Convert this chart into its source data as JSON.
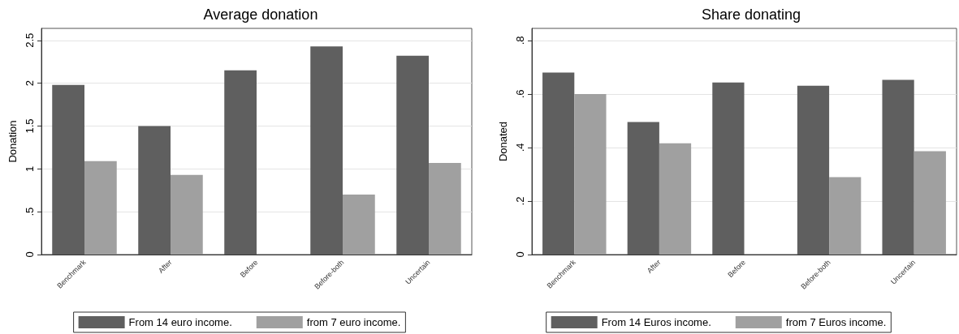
{
  "chart_data": [
    {
      "type": "bar",
      "title": "Average donation",
      "ylabel": "Donation",
      "categories": [
        "Benchmark",
        "After",
        "Before",
        "Before-both",
        "Uncertain"
      ],
      "series": [
        {
          "name": "From 14 euro income.",
          "color": "#5f5f5f",
          "values": [
            1.98,
            1.5,
            2.15,
            2.43,
            2.32
          ]
        },
        {
          "name": "from 7 euro income.",
          "color": "#a0a0a0",
          "values": [
            1.09,
            0.93,
            null,
            0.7,
            1.07
          ]
        }
      ],
      "ylim": [
        0,
        2.64
      ],
      "yticks": [
        0,
        {
          "value": 0.5,
          "label": ".5"
        },
        1,
        1.5,
        2,
        2.5
      ],
      "grid": "y",
      "legend": "bottom"
    },
    {
      "type": "bar",
      "title": "Share donating",
      "ylabel": "Donated",
      "categories": [
        "Benchmark",
        "After",
        "Before",
        "Before-both",
        "Uncertain"
      ],
      "series": [
        {
          "name": "From 14 Euros income.",
          "color": "#5f5f5f",
          "values": [
            0.68,
            0.495,
            0.643,
            0.631,
            0.653
          ]
        },
        {
          "name": "from 7 Euros income.",
          "color": "#a0a0a0",
          "values": [
            0.6,
            0.416,
            null,
            0.289,
            0.386
          ]
        }
      ],
      "ylim": [
        0,
        0.845
      ],
      "yticks": [
        0,
        {
          "value": 0.2,
          "label": ".2"
        },
        {
          "value": 0.4,
          "label": ".4"
        },
        {
          "value": 0.6,
          "label": ".6"
        },
        {
          "value": 0.8,
          "label": ".8"
        }
      ],
      "grid": "y",
      "legend": "bottom"
    }
  ]
}
